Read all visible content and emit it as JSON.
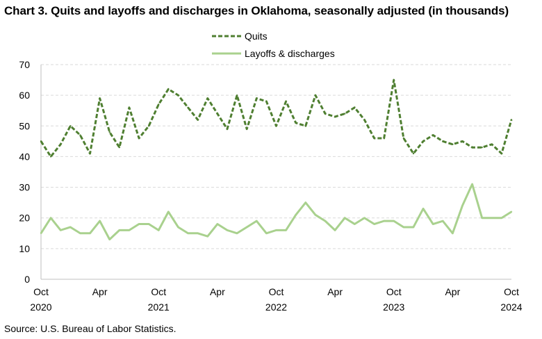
{
  "chart_data": {
    "type": "line",
    "title": "Chart 3. Quits and layoffs and discharges in Oklahoma, seasonally adjusted (in thousands)",
    "source": "Source: U.S. Bureau of Labor Statistics.",
    "xlabel": "",
    "ylabel": "",
    "ylim": [
      0,
      70
    ],
    "yticks": [
      "0",
      "10",
      "20",
      "30",
      "40",
      "50",
      "60",
      "70"
    ],
    "grid": true,
    "legend_position": "top-center",
    "x_months": [
      "Oct 2020",
      "Nov 2020",
      "Dec 2020",
      "Jan 2021",
      "Feb 2021",
      "Mar 2021",
      "Apr 2021",
      "May 2021",
      "Jun 2021",
      "Jul 2021",
      "Aug 2021",
      "Sep 2021",
      "Oct 2021",
      "Nov 2021",
      "Dec 2021",
      "Jan 2022",
      "Feb 2022",
      "Mar 2022",
      "Apr 2022",
      "May 2022",
      "Jun 2022",
      "Jul 2022",
      "Aug 2022",
      "Sep 2022",
      "Oct 2022",
      "Nov 2022",
      "Dec 2022",
      "Jan 2023",
      "Feb 2023",
      "Mar 2023",
      "Apr 2023",
      "May 2023",
      "Jun 2023",
      "Jul 2023",
      "Aug 2023",
      "Sep 2023",
      "Oct 2023",
      "Nov 2023",
      "Dec 2023",
      "Jan 2024",
      "Feb 2024",
      "Mar 2024",
      "Apr 2024",
      "May 2024",
      "Jun 2024",
      "Jul 2024",
      "Aug 2024",
      "Sep 2024",
      "Oct 2024"
    ],
    "xtick_labels": [
      {
        "index": 0,
        "month": "Oct",
        "year": "2020"
      },
      {
        "index": 6,
        "month": "Apr",
        "year": ""
      },
      {
        "index": 12,
        "month": "Oct",
        "year": "2021"
      },
      {
        "index": 18,
        "month": "Apr",
        "year": ""
      },
      {
        "index": 24,
        "month": "Oct",
        "year": "2022"
      },
      {
        "index": 30,
        "month": "Apr",
        "year": ""
      },
      {
        "index": 36,
        "month": "Oct",
        "year": "2023"
      },
      {
        "index": 42,
        "month": "Apr",
        "year": ""
      },
      {
        "index": 48,
        "month": "Oct",
        "year": "2024"
      }
    ],
    "series": [
      {
        "name": "Quits",
        "color": "#4f7f31",
        "style": "dashed",
        "values": [
          45,
          40,
          44,
          50,
          47,
          41,
          59,
          48,
          43,
          56,
          46,
          50,
          57,
          62,
          60,
          56,
          52,
          59,
          54,
          49,
          60,
          49,
          59,
          58,
          50,
          58,
          51,
          50,
          60,
          54,
          53,
          54,
          56,
          52,
          46,
          46,
          65,
          46,
          41,
          45,
          47,
          45,
          44,
          45,
          43,
          43,
          44,
          41,
          52
        ]
      },
      {
        "name": "Layoffs & discharges",
        "color": "#a9d18e",
        "style": "solid",
        "values": [
          15,
          20,
          16,
          17,
          15,
          15,
          19,
          13,
          16,
          16,
          18,
          18,
          16,
          22,
          17,
          15,
          15,
          14,
          18,
          16,
          15,
          17,
          19,
          15,
          16,
          16,
          21,
          25,
          21,
          19,
          16,
          20,
          18,
          20,
          18,
          19,
          19,
          17,
          17,
          23,
          18,
          19,
          15,
          24,
          31,
          20,
          20,
          20,
          22
        ]
      }
    ]
  }
}
